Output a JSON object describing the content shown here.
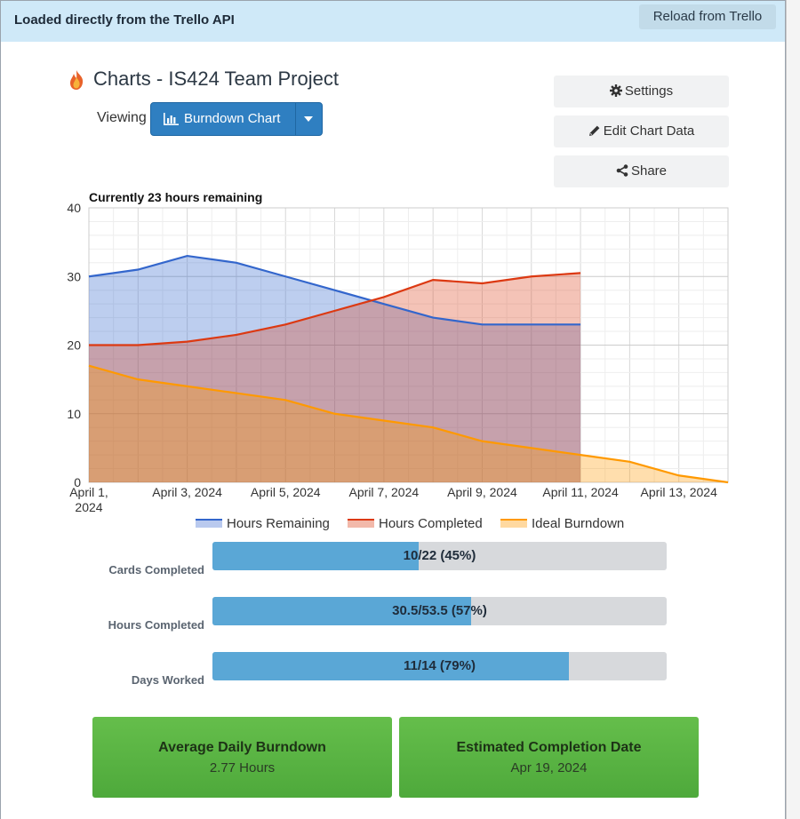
{
  "topbar": {
    "message": "Loaded directly from the Trello API",
    "reload_label": "Reload from Trello"
  },
  "header": {
    "title": "Charts - IS424 Team Project",
    "viewing_label": "Viewing",
    "selected_chart": "Burndown Chart",
    "icon": "flame-logo"
  },
  "actions": {
    "settings_label": "Settings",
    "edit_label": "Edit Chart Data",
    "share_label": "Share"
  },
  "colors": {
    "remaining": "#3366cc",
    "completed": "#dc3912",
    "ideal": "#ff9900",
    "progress_fill": "#5aa7d6",
    "card_green": "#5cb544"
  },
  "chart_data": {
    "type": "area",
    "title": "Currently 23 hours remaining",
    "ylim": [
      0,
      40
    ],
    "y_ticks": [
      0,
      10,
      20,
      30,
      40
    ],
    "x_ticks": [
      "April 1, 2024",
      "April 3, 2024",
      "April 5, 2024",
      "April 7, 2024",
      "April 9, 2024",
      "April 11, 2024",
      "April 13, 2024"
    ],
    "x_days": [
      1,
      2,
      3,
      4,
      5,
      6,
      7,
      8,
      9,
      10,
      11,
      12,
      13,
      14
    ],
    "grid": true,
    "legend_position": "bottom",
    "series": [
      {
        "name": "Hours Remaining",
        "values": [
          30,
          31,
          33,
          32,
          30,
          28,
          26,
          24,
          23,
          23,
          23
        ]
      },
      {
        "name": "Hours Completed",
        "values": [
          20,
          20,
          20.5,
          21.5,
          23,
          25,
          27,
          29.5,
          29,
          30,
          30.5
        ]
      },
      {
        "name": "Ideal Burndown",
        "values": [
          17,
          15,
          14,
          13,
          12,
          10,
          9,
          8,
          6,
          5,
          4,
          3,
          1,
          0
        ]
      }
    ]
  },
  "stats": [
    {
      "label": "Cards Completed",
      "text": "10/22 (45%)",
      "fraction": 0.4545
    },
    {
      "label": "Hours Completed",
      "text": "30.5/53.5 (57%)",
      "fraction": 0.5701
    },
    {
      "label": "Days Worked",
      "text": "11/14 (79%)",
      "fraction": 0.7857
    }
  ],
  "cards": [
    {
      "title": "Average Daily Burndown",
      "value": "2.77 Hours"
    },
    {
      "title": "Estimated Completion Date",
      "value": "Apr 19, 2024"
    }
  ]
}
